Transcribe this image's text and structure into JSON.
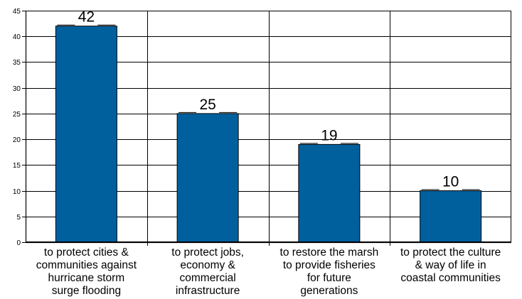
{
  "chart_data": {
    "type": "bar",
    "categories": [
      "to protect cities & communities against hurricane storm surge flooding",
      "to protect jobs, economy & commercial infrastructure",
      "to restore the marsh to provide fisheries for future generations",
      "to protect the culture & way of life in coastal communities"
    ],
    "category_lines": [
      [
        "to protect cities &",
        "communities against",
        "hurricane storm",
        "surge flooding"
      ],
      [
        "to protect jobs,",
        "economy &",
        "commercial",
        "infrastructure"
      ],
      [
        "to restore the marsh",
        "to provide fisheries",
        "for future",
        "generations"
      ],
      [
        "to protect the culture",
        "& way of life in",
        "coastal communities"
      ]
    ],
    "values": [
      42,
      25,
      19,
      10
    ],
    "data_labels": [
      "42",
      "25",
      "19",
      "10"
    ],
    "ylim": [
      0,
      45
    ],
    "y_ticks": [
      0,
      5,
      10,
      15,
      20,
      25,
      30,
      35,
      40,
      45
    ],
    "grid": true,
    "legend": "none",
    "bar_color": "#00609e",
    "title": "",
    "xlabel": "",
    "ylabel": ""
  }
}
